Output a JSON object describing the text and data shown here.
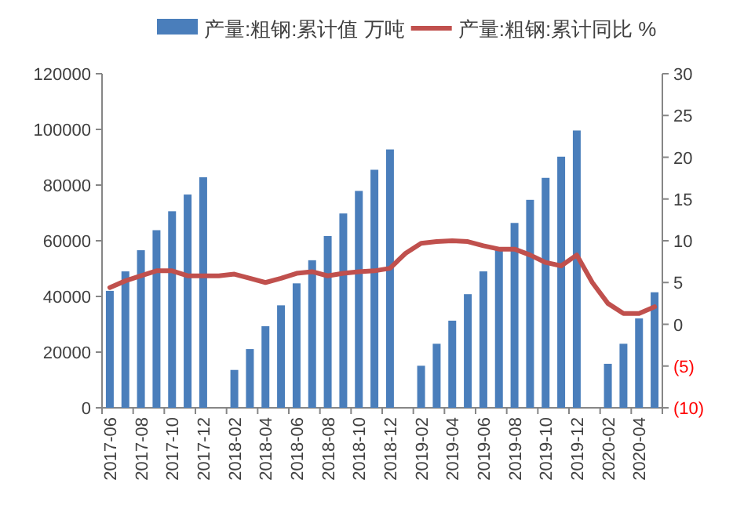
{
  "chart_data": {
    "type": "bar",
    "categories": [
      "2017-06",
      null,
      "2017-08",
      null,
      "2017-10",
      null,
      "2017-12",
      null,
      "2018-02",
      null,
      "2018-04",
      null,
      "2018-06",
      null,
      "2018-08",
      null,
      "2018-10",
      null,
      "2018-12",
      null,
      "2019-02",
      null,
      "2019-04",
      null,
      "2019-06",
      null,
      "2019-08",
      null,
      "2019-10",
      null,
      "2019-12",
      null,
      "2020-02",
      null,
      "2020-04",
      null
    ],
    "series": [
      {
        "name": "产量:粗钢:累计值 万吨",
        "color": "#4a7ebb",
        "values": [
          42000,
          49000,
          56600,
          63800,
          70600,
          76600,
          82800,
          null,
          13600,
          21100,
          29300,
          36800,
          44700,
          53000,
          61700,
          69800,
          77900,
          85500,
          92800,
          null,
          15100,
          23000,
          31300,
          40800,
          49000,
          57500,
          66400,
          74700,
          82600,
          90200,
          99600,
          null,
          15800,
          23000,
          32100,
          41500
        ]
      },
      {
        "name": "产量:粗钢:累计同比 %",
        "type": "line",
        "axis": "y2",
        "color": "#c0504d",
        "values": [
          4.4,
          5.2,
          5.8,
          6.4,
          6.4,
          5.8,
          5.8,
          5.8,
          6.0,
          5.5,
          5.0,
          5.5,
          6.1,
          6.3,
          5.8,
          6.1,
          6.3,
          6.4,
          6.7,
          8.5,
          9.7,
          9.9,
          10.0,
          9.9,
          9.4,
          9.0,
          9.0,
          8.3,
          7.4,
          7.0,
          8.3,
          5.0,
          2.5,
          1.3,
          1.3,
          2.1
        ]
      }
    ],
    "ylim": [
      0,
      120000
    ],
    "yticks": [
      0,
      20000,
      40000,
      60000,
      80000,
      100000,
      120000
    ],
    "y2lim": [
      -10,
      30
    ],
    "y2ticks": [
      {
        "value": -10,
        "label": "(10)"
      },
      {
        "value": -5,
        "label": "(5)"
      },
      0,
      5,
      10,
      15,
      20,
      25,
      30
    ],
    "legend": "top",
    "grid": false
  }
}
